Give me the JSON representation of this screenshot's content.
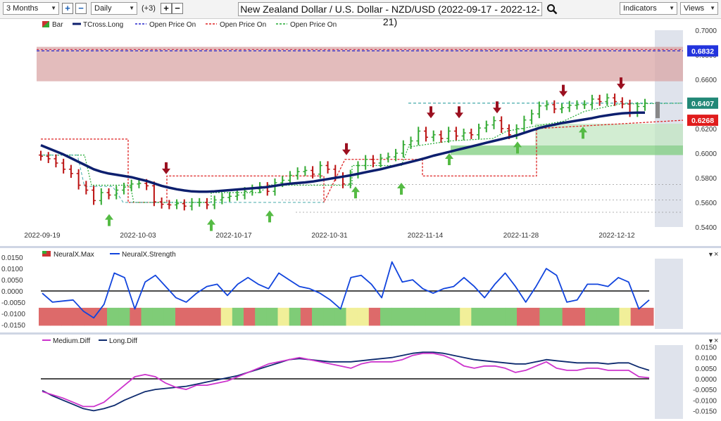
{
  "toolbar": {
    "period": "3 Months",
    "interval": "Daily",
    "plus_count": "(+3)",
    "title": "New Zealand Dollar / U.S. Dollar - NZD/USD (2022-09-17 - 2022-12-21)",
    "indicators_label": "Indicators",
    "views_label": "Views"
  },
  "colors": {
    "tcross": "#0d1f6e",
    "open_blue": "#2222cc",
    "open_red": "#dd2222",
    "open_green": "#22aa33",
    "up_bar": "#33aa33",
    "down_bar": "#bb1111",
    "strength": "#1144dd",
    "medium": "#cc33cc",
    "long": "#0d2a6e"
  },
  "chart_data": [
    {
      "type": "bar",
      "title": "New Zealand Dollar / U.S. Dollar - NZD/USD (2022-09-17 - 2022-12-21)",
      "legend": [
        "Bar",
        "TCross.Long",
        "Open Price On",
        "Open Price On",
        "Open Price On"
      ],
      "x_ticks": [
        "2022-09-19",
        "2022-10-03",
        "2022-10-17",
        "2022-10-31",
        "2022-11-14",
        "2022-11-28",
        "2022-12-12"
      ],
      "y_ticks": [
        "0.7000",
        "0.6800",
        "0.6600",
        "0.6400",
        "0.6200",
        "0.6000",
        "0.5800",
        "0.5600",
        "0.5400"
      ],
      "ylim": [
        0.54,
        0.7
      ],
      "price_tags": {
        "blue": "0.6832",
        "current": "0.6407",
        "red": "0.6268"
      },
      "resistance_zone": [
        0.6585,
        0.6865
      ],
      "support_zone": [
        0.5985,
        0.6063
      ],
      "support_zone_high": 0.6063,
      "close": [
        0.5975,
        0.5955,
        0.592,
        0.587,
        0.5835,
        0.574,
        0.57,
        0.5615,
        0.568,
        0.566,
        0.57,
        0.5725,
        0.575,
        0.5755,
        0.5735,
        0.5605,
        0.5585,
        0.558,
        0.559,
        0.557,
        0.56,
        0.56,
        0.558,
        0.562,
        0.564,
        0.565,
        0.566,
        0.569,
        0.571,
        0.573,
        0.569,
        0.576,
        0.578,
        0.582,
        0.585,
        0.586,
        0.583,
        0.59,
        0.587,
        0.581,
        0.575,
        0.583,
        0.59,
        0.595,
        0.592,
        0.596,
        0.597,
        0.6,
        0.607,
        0.61,
        0.618,
        0.613,
        0.615,
        0.612,
        0.618,
        0.614,
        0.6165,
        0.615,
        0.6205,
        0.623,
        0.6265,
        0.62,
        0.615,
        0.62,
        0.627,
        0.632,
        0.6385,
        0.6395,
        0.636,
        0.637,
        0.639,
        0.6395,
        0.6395,
        0.644,
        0.642,
        0.645,
        0.642,
        0.64,
        0.633,
        0.638,
        0.6407
      ],
      "tcross_long": [
        0.6065,
        0.604,
        0.6015,
        0.599,
        0.596,
        0.593,
        0.59,
        0.587,
        0.585,
        0.5835,
        0.5825,
        0.5815,
        0.5805,
        0.579,
        0.5775,
        0.5755,
        0.5735,
        0.572,
        0.5707,
        0.5697,
        0.569,
        0.5687,
        0.5687,
        0.569,
        0.5695,
        0.57,
        0.5705,
        0.571,
        0.5715,
        0.572,
        0.5725,
        0.5735,
        0.5745,
        0.5752,
        0.5758,
        0.5763,
        0.577,
        0.578,
        0.579,
        0.58,
        0.581,
        0.582,
        0.5832,
        0.5845,
        0.5858,
        0.587,
        0.5885,
        0.59,
        0.5915,
        0.593,
        0.5945,
        0.5962,
        0.598,
        0.5995,
        0.601,
        0.6025,
        0.604,
        0.6055,
        0.607,
        0.6085,
        0.61,
        0.6115,
        0.613,
        0.6145,
        0.6165,
        0.6185,
        0.6205,
        0.622,
        0.6232,
        0.6245,
        0.6255,
        0.6265,
        0.6275,
        0.6285,
        0.6298,
        0.6308,
        0.6317,
        0.6324,
        0.6328,
        0.633,
        0.633
      ]
    },
    {
      "type": "line",
      "legend": [
        "NeuralX.Max",
        "NeuralX.Strength"
      ],
      "y_ticks": [
        "0.0150",
        "0.0100",
        "0.0050",
        "0.0000",
        "-0.0050",
        "-0.0100",
        "-0.0150"
      ],
      "ylim": [
        -0.016,
        0.016
      ],
      "strength": [
        -0.001,
        -0.005,
        -0.0045,
        -0.004,
        -0.009,
        -0.012,
        -0.006,
        0.008,
        0.006,
        -0.008,
        0.004,
        0.007,
        0.002,
        -0.003,
        -0.005,
        -0.001,
        0.002,
        0.003,
        -0.002,
        0.003,
        0.006,
        0.003,
        0.001,
        0.008,
        0.005,
        0.002,
        0.001,
        -0.001,
        -0.004,
        -0.008,
        0.006,
        0.007,
        0.003,
        -0.003,
        0.013,
        0.004,
        0.005,
        0.001,
        -0.001,
        0.001,
        0.002,
        0.006,
        0.002,
        -0.003,
        0.003,
        0.008,
        0.002,
        -0.005,
        0.002,
        0.01,
        0.007,
        -0.005,
        -0.004,
        0.003,
        0.003,
        0.002,
        0.006,
        0.004,
        -0.008,
        -0.004
      ],
      "max_strip": [
        "r",
        "r",
        "r",
        "r",
        "r",
        "r",
        "g",
        "g",
        "r",
        "g",
        "g",
        "g",
        "r",
        "r",
        "r",
        "r",
        "y",
        "g",
        "r",
        "g",
        "g",
        "y",
        "g",
        "r",
        "g",
        "g",
        "g",
        "y",
        "y",
        "r",
        "g",
        "g",
        "g",
        "g",
        "g",
        "g",
        "g",
        "y",
        "g",
        "g",
        "g",
        "g",
        "r",
        "r",
        "g",
        "g",
        "r",
        "r",
        "g",
        "g",
        "g",
        "y",
        "r",
        "r"
      ]
    },
    {
      "type": "line",
      "legend": [
        "Medium.Diff",
        "Long.Diff"
      ],
      "y_ticks": [
        "0.0150",
        "0.0100",
        "0.0050",
        "0.0000",
        "-0.0050",
        "-0.0100",
        "-0.0150"
      ],
      "ylim": [
        -0.0175,
        0.0175
      ],
      "medium_diff": [
        -0.006,
        -0.0075,
        -0.009,
        -0.011,
        -0.013,
        -0.013,
        -0.011,
        -0.007,
        -0.003,
        0.001,
        0.002,
        0.001,
        -0.002,
        -0.004,
        -0.005,
        -0.003,
        -0.003,
        -0.002,
        -0.001,
        0.001,
        0.003,
        0.005,
        0.007,
        0.008,
        0.009,
        0.01,
        0.009,
        0.008,
        0.007,
        0.006,
        0.005,
        0.007,
        0.008,
        0.008,
        0.008,
        0.009,
        0.011,
        0.012,
        0.012,
        0.011,
        0.009,
        0.006,
        0.005,
        0.006,
        0.006,
        0.005,
        0.003,
        0.004,
        0.006,
        0.008,
        0.005,
        0.004,
        0.004,
        0.005,
        0.005,
        0.004,
        0.004,
        0.004,
        0.001,
        0.0005
      ],
      "long_diff": [
        -0.0055,
        -0.008,
        -0.01,
        -0.012,
        -0.014,
        -0.015,
        -0.014,
        -0.0125,
        -0.01,
        -0.008,
        -0.006,
        -0.005,
        -0.0045,
        -0.004,
        -0.0035,
        -0.0025,
        -0.0015,
        -0.0005,
        0.0005,
        0.0015,
        0.003,
        0.0045,
        0.006,
        0.0075,
        0.009,
        0.0095,
        0.009,
        0.0085,
        0.008,
        0.008,
        0.008,
        0.0085,
        0.009,
        0.0095,
        0.01,
        0.011,
        0.012,
        0.0125,
        0.0125,
        0.012,
        0.011,
        0.01,
        0.009,
        0.0085,
        0.008,
        0.0075,
        0.007,
        0.007,
        0.008,
        0.009,
        0.0085,
        0.008,
        0.0075,
        0.0075,
        0.0075,
        0.007,
        0.0075,
        0.0075,
        0.0055,
        0.004
      ]
    }
  ]
}
